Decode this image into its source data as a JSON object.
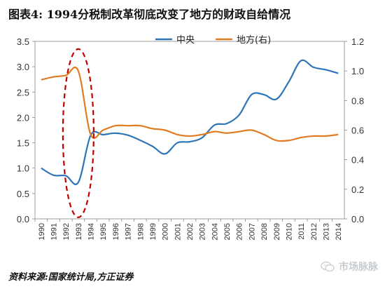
{
  "title": "图表4:   1994分税制改革彻底改变了地方的财政自给情况",
  "source": "资料来源:国家统计局,方正证券",
  "watermark": "市场脉脉",
  "chart_data": {
    "type": "line",
    "categories": [
      "1990",
      "1991",
      "1992",
      "1993",
      "1994",
      "1995",
      "1996",
      "1997",
      "1998",
      "1999",
      "2000",
      "2001",
      "2002",
      "2003",
      "2004",
      "2005",
      "2006",
      "2007",
      "2008",
      "2009",
      "2010",
      "2011",
      "2012",
      "2013",
      "2014"
    ],
    "series": [
      {
        "name": "中央",
        "axis": "left",
        "color": "#2E75B6",
        "values": [
          1.0,
          0.86,
          0.85,
          0.72,
          1.65,
          1.66,
          1.69,
          1.65,
          1.55,
          1.43,
          1.28,
          1.5,
          1.52,
          1.6,
          1.85,
          1.88,
          2.05,
          2.45,
          2.45,
          2.36,
          2.7,
          3.12,
          2.99,
          2.94,
          2.87
        ]
      },
      {
        "name": "地方(右)",
        "axis": "right",
        "color": "#E07C22",
        "values": [
          0.94,
          0.96,
          0.97,
          1.0,
          0.57,
          0.6,
          0.63,
          0.63,
          0.63,
          0.61,
          0.6,
          0.57,
          0.56,
          0.57,
          0.59,
          0.58,
          0.59,
          0.6,
          0.57,
          0.53,
          0.53,
          0.55,
          0.56,
          0.56,
          0.57
        ]
      }
    ],
    "yticks_left": [
      "0.0",
      "0.5",
      "1.0",
      "1.5",
      "2.0",
      "2.5",
      "3.0",
      "3.5"
    ],
    "yticks_right": [
      "0.0",
      "0.2",
      "0.4",
      "0.6",
      "0.8",
      "1.0",
      "1.2"
    ],
    "ylim_left": [
      0,
      3.5
    ],
    "ylim_right": [
      0,
      1.2
    ],
    "legend_position": "top-center",
    "grid": false,
    "annotation": {
      "shape": "dashed-ellipse",
      "color": "#C00000",
      "x_category": "1993",
      "y_range_left": [
        0.03,
        3.35
      ]
    }
  }
}
